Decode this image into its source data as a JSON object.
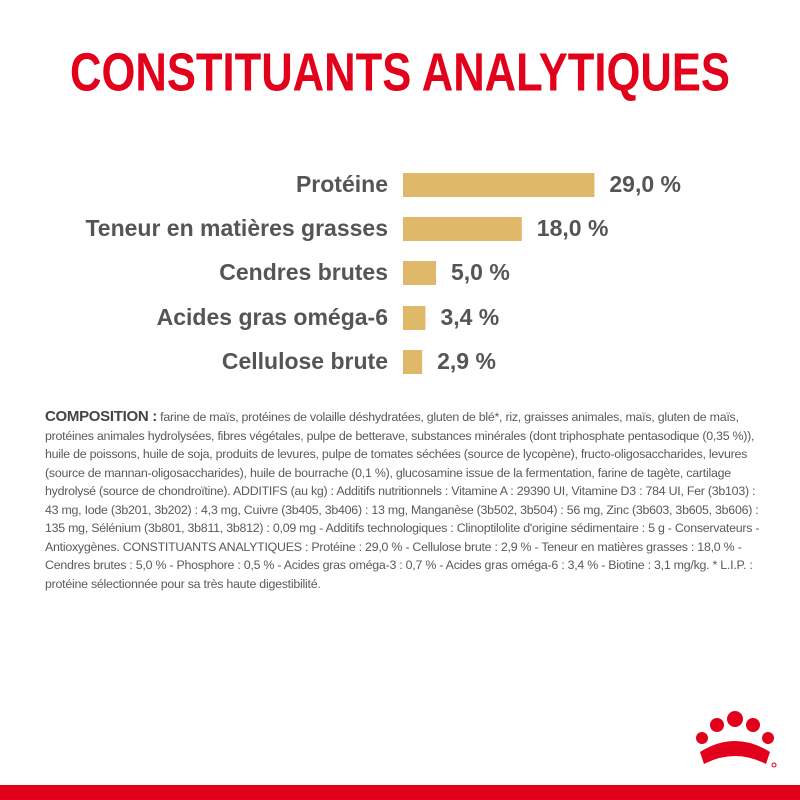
{
  "chart_data": {
    "type": "bar",
    "orientation": "horizontal",
    "title": "CONSTITUANTS ANALYTIQUES",
    "categories": [
      "Protéine",
      "Teneur en matières grasses",
      "Cendres brutes",
      "Acides gras oméga-6",
      "Cellulose brute"
    ],
    "values": [
      29.0,
      18.0,
      5.0,
      3.4,
      2.9
    ],
    "value_labels": [
      "29,0 %",
      "18,0 %",
      "5,0 %",
      "3,4 %",
      "2,9 %"
    ],
    "color": "#dfb869"
  },
  "composition": {
    "label": "COMPOSITION :",
    "text": "farine de maïs, protéines de volaille déshydratées, gluten de blé*, riz, graisses animales, maïs, gluten de maïs, protéines animales hydrolysées, fibres végétales, pulpe de betterave, substances minérales (dont triphosphate pentasodique (0,35 %)), huile de poissons, huile de soja, produits de levures, pulpe de tomates séchées (source de lycopène), fructo-oligosaccharides, levures (source de mannan-oligosaccharides), huile de bourrache (0,1 %), glucosamine issue de la fermentation, farine de tagète, cartilage hydrolysé (source de chondroïtine). ADDITIFS (au kg) : Additifs nutritionnels : Vitamine A : 29390 UI, Vitamine D3 : 784 UI, Fer (3b103) : 43 mg, Iode (3b201, 3b202) : 4,3 mg, Cuivre (3b405, 3b406) : 13 mg, Manganèse (3b502, 3b504) : 56 mg, Zinc (3b603, 3b605, 3b606) : 135 mg, Sélénium (3b801, 3b811, 3b812) : 0,09 mg - Additifs technologiques : Clinoptilolite d'origine sédimentaire : 5 g - Conservateurs - Antioxygènes. CONSTITUANTS ANALYTIQUES : Protéine : 29,0 % - Cellulose brute : 2,9 % - Teneur en matières grasses : 18,0 % - Cendres brutes : 5,0 % - Phosphore : 0,5 % - Acides gras oméga-3 : 0,7 % - Acides gras oméga-6 : 3,4 % - Biotine : 3,1 mg/kg. * L.I.P. : protéine sélectionnée pour sa très haute digestibilité."
  }
}
